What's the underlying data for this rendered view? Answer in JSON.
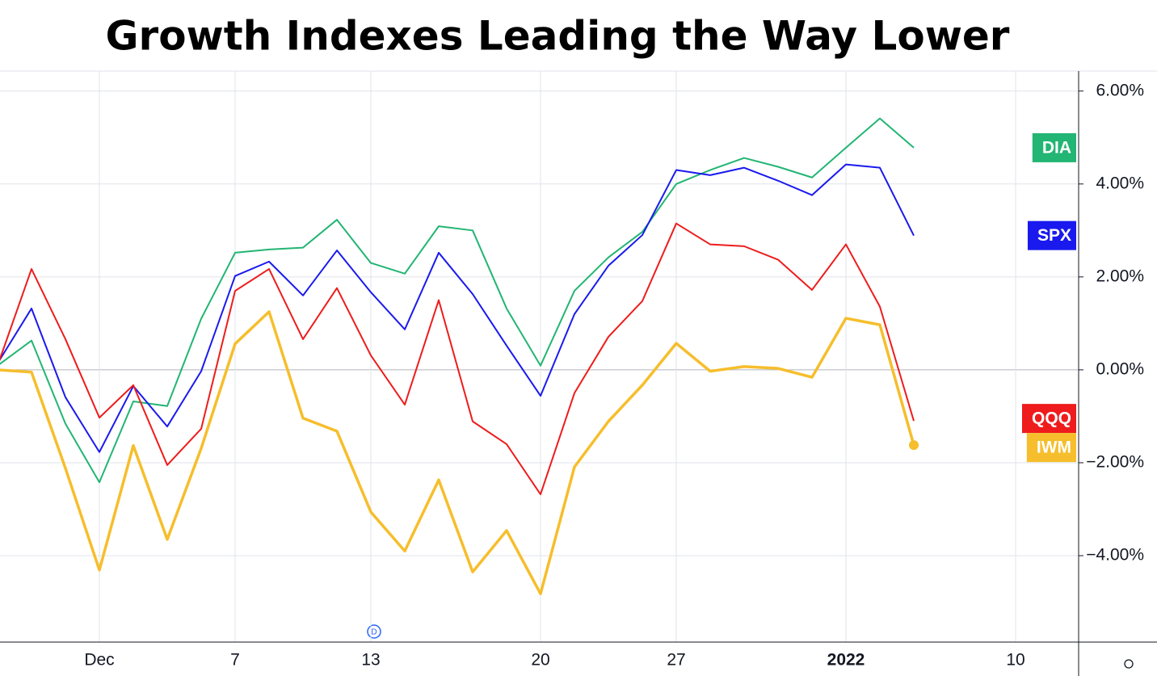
{
  "chart_data": {
    "type": "line",
    "title": "Growth Indexes Leading the Way Lower",
    "categories": [
      null,
      null,
      null,
      "Dec",
      null,
      null,
      null,
      "7",
      null,
      null,
      null,
      "13",
      null,
      null,
      null,
      null,
      "20",
      null,
      null,
      null,
      "27",
      null,
      null,
      null,
      null,
      "2022",
      null,
      null,
      null,
      null,
      "10"
    ],
    "series": [
      {
        "name": "DIA",
        "color": "#22b573",
        "values": [
          0.09,
          0.63,
          -1.16,
          -2.42,
          -0.68,
          -0.78,
          1.1,
          2.52,
          2.59,
          2.63,
          3.23,
          2.3,
          2.07,
          3.09,
          3.0,
          1.32,
          0.09,
          1.7,
          2.42,
          2.97,
          4.0,
          4.3,
          4.56,
          4.37,
          4.14,
          4.78,
          5.41,
          4.78,
          null,
          null,
          null
        ]
      },
      {
        "name": "SPX",
        "color": "#1a1aee",
        "values": [
          0.14,
          1.32,
          -0.59,
          -1.77,
          -0.35,
          -1.22,
          -0.03,
          2.02,
          2.33,
          1.6,
          2.57,
          1.67,
          0.87,
          2.52,
          1.63,
          0.52,
          -0.56,
          1.2,
          2.24,
          2.9,
          4.3,
          4.19,
          4.35,
          4.07,
          3.76,
          4.42,
          4.35,
          2.89,
          null,
          null,
          null
        ]
      },
      {
        "name": "QQQ",
        "color": "#ee1c1c",
        "values": [
          0.09,
          2.17,
          0.66,
          -1.03,
          -0.33,
          -2.05,
          -1.27,
          1.7,
          2.17,
          0.66,
          1.76,
          0.31,
          -0.75,
          1.5,
          -1.11,
          -1.6,
          -2.68,
          -0.5,
          0.71,
          1.48,
          3.15,
          2.7,
          2.66,
          2.37,
          1.72,
          2.7,
          1.36,
          -1.1,
          null,
          null,
          null
        ]
      },
      {
        "name": "IWM",
        "color": "#f6be2c",
        "values": [
          0,
          -0.05,
          -2.12,
          -4.31,
          -1.63,
          -3.65,
          -1.69,
          0.56,
          1.25,
          -1.04,
          -1.32,
          -3.06,
          -3.9,
          -2.37,
          -4.35,
          -3.46,
          -4.82,
          -2.09,
          -1.11,
          -0.33,
          0.57,
          -0.03,
          0.07,
          0.03,
          -0.16,
          1.11,
          0.97,
          -1.62,
          null,
          null,
          null
        ]
      }
    ],
    "ylim": [
      -5.86,
      6.43
    ],
    "yticks": [
      {
        "value": -4,
        "label": "−4.00%"
      },
      {
        "value": -2,
        "label": "−2.00%"
      },
      {
        "value": 0,
        "label": "0.00%"
      },
      {
        "value": 2,
        "label": "2.00%"
      },
      {
        "value": 4,
        "label": "4.00%"
      },
      {
        "value": 6,
        "label": "6.00%"
      }
    ],
    "grid": true
  }
}
